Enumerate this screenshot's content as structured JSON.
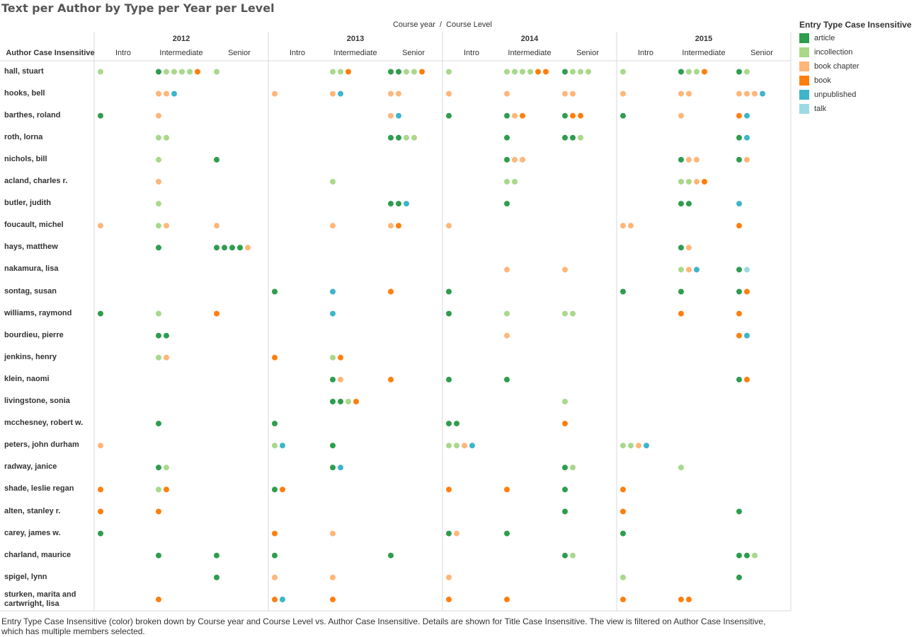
{
  "title": "Text per Author by Type per Year per Level",
  "chart_data": {
    "type": "scatter",
    "column_header": "Course year  /  Course Level",
    "row_header": "Author Case Insensitive",
    "years": [
      "2012",
      "2013",
      "2014",
      "2015"
    ],
    "levels": [
      "Intro",
      "Intermediate",
      "Senior"
    ],
    "legend": {
      "title": "Entry Type Case Insensitive",
      "placement": "right",
      "items": [
        {
          "name": "article",
          "color": "#2e9d4e"
        },
        {
          "name": "incollection",
          "color": "#a9d88b"
        },
        {
          "name": "book chapter",
          "color": "#ffb678"
        },
        {
          "name": "book",
          "color": "#ff7f0e"
        },
        {
          "name": "unpublished",
          "color": "#3db5cb"
        },
        {
          "name": "talk",
          "color": "#9dd9e3"
        }
      ]
    },
    "rows": [
      {
        "author": "hall, stuart",
        "cells": [
          [
            "incollection"
          ],
          [
            "article",
            "incollection",
            "incollection",
            "incollection",
            "incollection",
            "book"
          ],
          [
            "incollection"
          ],
          [],
          [
            "incollection",
            "incollection",
            "book"
          ],
          [
            "article",
            "article",
            "incollection",
            "incollection",
            "book"
          ],
          [
            "incollection"
          ],
          [
            "incollection",
            "incollection",
            "incollection",
            "incollection",
            "book",
            "book"
          ],
          [
            "article",
            "incollection",
            "incollection",
            "incollection"
          ],
          [
            "incollection"
          ],
          [
            "article",
            "incollection",
            "incollection",
            "book"
          ],
          [
            "article",
            "incollection"
          ]
        ]
      },
      {
        "author": "hooks, bell",
        "cells": [
          [],
          [
            "book chapter",
            "book chapter",
            "unpublished"
          ],
          [],
          [
            "book chapter"
          ],
          [
            "book chapter",
            "unpublished"
          ],
          [
            "book chapter",
            "book chapter"
          ],
          [
            "book chapter"
          ],
          [
            "book chapter"
          ],
          [
            "book chapter",
            "book chapter"
          ],
          [
            "book chapter"
          ],
          [
            "book chapter",
            "book chapter"
          ],
          [
            "book chapter",
            "book chapter",
            "book chapter",
            "unpublished"
          ]
        ]
      },
      {
        "author": "barthes, roland",
        "cells": [
          [
            "article"
          ],
          [
            "book chapter"
          ],
          [],
          [],
          [],
          [
            "book chapter",
            "unpublished"
          ],
          [
            "article"
          ],
          [
            "article",
            "book chapter",
            "book"
          ],
          [
            "article",
            "book",
            "book"
          ],
          [
            "article"
          ],
          [
            "book chapter"
          ],
          [
            "book",
            "unpublished"
          ]
        ]
      },
      {
        "author": "roth, lorna",
        "cells": [
          [],
          [
            "incollection",
            "incollection"
          ],
          [],
          [],
          [],
          [
            "article",
            "article",
            "incollection",
            "incollection"
          ],
          [],
          [
            "article"
          ],
          [
            "article",
            "article",
            "incollection"
          ],
          [],
          [],
          [
            "article",
            "unpublished"
          ]
        ]
      },
      {
        "author": "nichols, bill",
        "cells": [
          [],
          [
            "incollection"
          ],
          [
            "article"
          ],
          [],
          [],
          [],
          [],
          [
            "article",
            "book chapter",
            "book chapter"
          ],
          [],
          [],
          [
            "article",
            "book chapter",
            "book chapter"
          ],
          [
            "article",
            "book chapter"
          ]
        ]
      },
      {
        "author": "acland, charles r.",
        "cells": [
          [],
          [
            "book chapter"
          ],
          [],
          [],
          [
            "incollection"
          ],
          [],
          [],
          [
            "incollection",
            "incollection"
          ],
          [],
          [],
          [
            "incollection",
            "incollection",
            "book chapter",
            "book"
          ],
          []
        ]
      },
      {
        "author": "butler, judith",
        "cells": [
          [],
          [
            "incollection"
          ],
          [],
          [],
          [],
          [
            "article",
            "article",
            "unpublished"
          ],
          [],
          [
            "article"
          ],
          [],
          [],
          [
            "article",
            "article"
          ],
          [
            "unpublished"
          ]
        ]
      },
      {
        "author": "foucault, michel",
        "cells": [
          [
            "book chapter"
          ],
          [
            "incollection",
            "book chapter"
          ],
          [
            "book chapter"
          ],
          [],
          [
            "book chapter"
          ],
          [
            "book chapter",
            "book"
          ],
          [
            "book chapter"
          ],
          [],
          [],
          [
            "book chapter",
            "book chapter"
          ],
          [],
          [
            "book"
          ]
        ]
      },
      {
        "author": "hays, matthew",
        "cells": [
          [],
          [
            "article"
          ],
          [
            "article",
            "article",
            "article",
            "article",
            "book chapter"
          ],
          [],
          [],
          [],
          [],
          [],
          [],
          [],
          [
            "article",
            "book chapter"
          ],
          []
        ]
      },
      {
        "author": "nakamura, lisa",
        "cells": [
          [],
          [],
          [],
          [],
          [],
          [],
          [],
          [
            "book chapter"
          ],
          [
            "book chapter"
          ],
          [],
          [
            "incollection",
            "book chapter",
            "unpublished"
          ],
          [
            "article",
            "talk"
          ]
        ]
      },
      {
        "author": "sontag, susan",
        "cells": [
          [],
          [],
          [],
          [
            "article"
          ],
          [
            "unpublished"
          ],
          [
            "book"
          ],
          [
            "article"
          ],
          [],
          [],
          [
            "article"
          ],
          [
            "article"
          ],
          [
            "article",
            "book"
          ]
        ]
      },
      {
        "author": "williams, raymond",
        "cells": [
          [
            "article"
          ],
          [
            "incollection"
          ],
          [
            "book"
          ],
          [],
          [
            "unpublished"
          ],
          [],
          [
            "article"
          ],
          [
            "incollection"
          ],
          [
            "incollection",
            "incollection"
          ],
          [],
          [
            "book"
          ],
          [
            "book"
          ]
        ]
      },
      {
        "author": "bourdieu, pierre",
        "cells": [
          [],
          [
            "article",
            "article"
          ],
          [],
          [],
          [],
          [],
          [],
          [
            "book chapter"
          ],
          [],
          [],
          [],
          [
            "book",
            "unpublished"
          ]
        ]
      },
      {
        "author": "jenkins, henry",
        "cells": [
          [],
          [
            "incollection",
            "book chapter"
          ],
          [],
          [
            "book"
          ],
          [
            "incollection",
            "book"
          ],
          [],
          [],
          [],
          [],
          [],
          [],
          []
        ]
      },
      {
        "author": "klein, naomi",
        "cells": [
          [],
          [],
          [],
          [],
          [
            "article",
            "book chapter"
          ],
          [
            "book"
          ],
          [
            "article"
          ],
          [
            "article"
          ],
          [],
          [],
          [],
          [
            "article",
            "book"
          ]
        ]
      },
      {
        "author": "livingstone, sonia",
        "cells": [
          [],
          [],
          [],
          [],
          [
            "article",
            "article",
            "incollection",
            "book"
          ],
          [],
          [],
          [],
          [
            "incollection"
          ],
          [],
          [],
          []
        ]
      },
      {
        "author": "mcchesney, robert w.",
        "cells": [
          [],
          [
            "article"
          ],
          [],
          [
            "article"
          ],
          [],
          [],
          [
            "article",
            "article"
          ],
          [],
          [
            "book"
          ],
          [],
          [],
          []
        ]
      },
      {
        "author": "peters, john durham",
        "cells": [
          [
            "book chapter"
          ],
          [],
          [],
          [
            "incollection",
            "unpublished"
          ],
          [
            "article"
          ],
          [],
          [
            "incollection",
            "incollection",
            "book chapter",
            "unpublished"
          ],
          [],
          [],
          [
            "incollection",
            "incollection",
            "book chapter",
            "unpublished"
          ],
          [],
          []
        ]
      },
      {
        "author": "radway, janice",
        "cells": [
          [],
          [
            "article",
            "incollection"
          ],
          [],
          [],
          [
            "article",
            "unpublished"
          ],
          [],
          [],
          [],
          [
            "article",
            "incollection"
          ],
          [],
          [
            "incollection"
          ],
          []
        ]
      },
      {
        "author": "shade, leslie regan",
        "cells": [
          [
            "book"
          ],
          [
            "incollection",
            "book"
          ],
          [],
          [
            "article",
            "book"
          ],
          [],
          [],
          [
            "book"
          ],
          [
            "book"
          ],
          [
            "article"
          ],
          [
            "book"
          ],
          [],
          []
        ]
      },
      {
        "author": "alten, stanley r.",
        "cells": [
          [
            "book"
          ],
          [
            "book"
          ],
          [],
          [],
          [],
          [],
          [],
          [],
          [
            "article"
          ],
          [
            "book"
          ],
          [],
          [
            "article"
          ]
        ]
      },
      {
        "author": "carey, james w.",
        "cells": [
          [
            "article"
          ],
          [],
          [],
          [
            "book"
          ],
          [
            "book chapter"
          ],
          [],
          [
            "article",
            "book chapter"
          ],
          [
            "article"
          ],
          [],
          [
            "article"
          ],
          [],
          []
        ]
      },
      {
        "author": "charland, maurice",
        "cells": [
          [],
          [
            "article"
          ],
          [
            "article"
          ],
          [
            "article"
          ],
          [],
          [
            "article"
          ],
          [],
          [],
          [
            "article",
            "incollection"
          ],
          [],
          [],
          [
            "article",
            "article",
            "incollection"
          ]
        ]
      },
      {
        "author": "spigel, lynn",
        "cells": [
          [],
          [],
          [
            "article"
          ],
          [
            "book chapter"
          ],
          [
            "book chapter"
          ],
          [],
          [
            "book chapter"
          ],
          [],
          [],
          [
            "incollection"
          ],
          [],
          [
            "article"
          ]
        ]
      },
      {
        "author": "sturken, marita and cartwright, lisa",
        "cells": [
          [],
          [
            "book"
          ],
          [],
          [
            "book",
            "unpublished"
          ],
          [
            "book"
          ],
          [],
          [
            "book"
          ],
          [
            "book"
          ],
          [],
          [
            "book"
          ],
          [
            "book",
            "book"
          ],
          []
        ]
      }
    ]
  },
  "footer": "Entry Type Case Insensitive (color) broken down by Course year and Course Level vs. Author Case Insensitive.  Details are shown for Title Case Insensitive. The view is filtered on Author Case Insensitive, which has multiple members selected."
}
